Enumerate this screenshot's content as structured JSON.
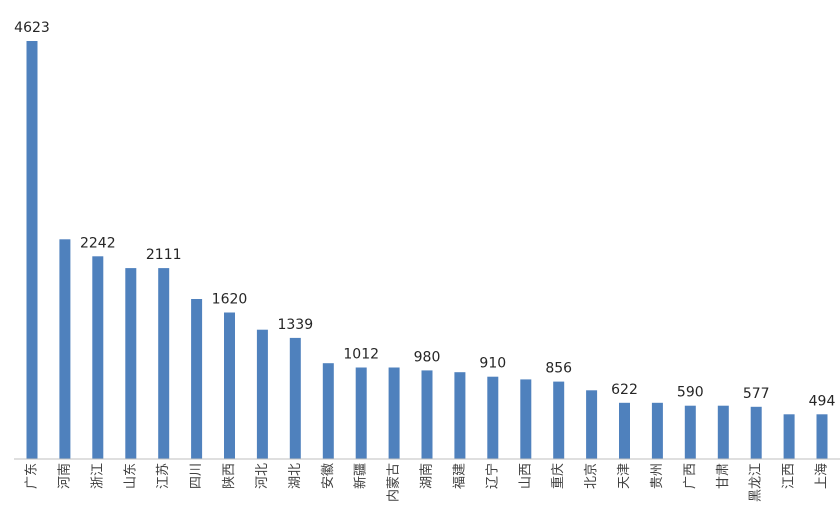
{
  "chart_data": {
    "type": "bar",
    "categories": [
      "广东",
      "河南",
      "浙江",
      "山东",
      "江苏",
      "四川",
      "陕西",
      "河北",
      "湖北",
      "安徽",
      "新疆",
      "内蒙古",
      "湖南",
      "福建",
      "辽宁",
      "山西",
      "重庆",
      "北京",
      "天津",
      "贵州",
      "广西",
      "甘肃",
      "黑龙江",
      "江西",
      "上海"
    ],
    "values": [
      4623,
      2430,
      2242,
      2111,
      2111,
      1770,
      1620,
      1430,
      1339,
      1060,
      1012,
      1012,
      980,
      960,
      910,
      880,
      856,
      760,
      622,
      622,
      590,
      590,
      577,
      494,
      494
    ],
    "data_labels": [
      "4623",
      "",
      "2242",
      "",
      "2111",
      "",
      "1620",
      "",
      "1339",
      "",
      "1012",
      "",
      "980",
      "",
      "910",
      "",
      "856",
      "",
      "622",
      "",
      "590",
      "",
      "577",
      "",
      "494"
    ],
    "title": "",
    "xlabel": "",
    "ylabel": "",
    "ylim": [
      0,
      4623
    ],
    "grid": false,
    "legend": "none",
    "bar_color": "#4f81bd"
  }
}
